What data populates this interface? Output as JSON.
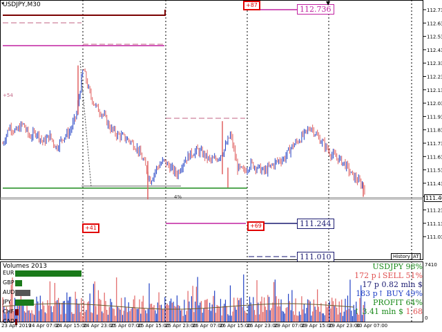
{
  "main_chart": {
    "symbol_label": "USDJPY,M30",
    "price_axis": [
      "112.730",
      "112.630",
      "112.530",
      "112.430",
      "112.330",
      "112.230",
      "112.130",
      "112.030",
      "111.930",
      "111.830",
      "111.730",
      "111.630",
      "111.530",
      "111.430",
      "111.330",
      "111.230",
      "111.130",
      "111.030"
    ],
    "current_price": "111.408",
    "level_labels": {
      "top": "112.736",
      "mid": "111.244",
      "low": "111.010"
    },
    "red_boxes": {
      "top": "+87",
      "left": "+41",
      "mid": "+69"
    },
    "side_mark": "+54",
    "percent_mark": "4%",
    "history_button": "History_M",
    "at_button": "AT",
    "colors": {
      "bull": "#1f3fc4",
      "bear": "#e06060",
      "level_magenta": "#c020a0",
      "level_green": "#1a8a1a",
      "level_dark": "#7a0000",
      "box_red": "#e00000"
    }
  },
  "volume_panel": {
    "title": "Volumes 2013",
    "max_value": "7410",
    "min_value": "0",
    "currencies": [
      {
        "code": "EUR",
        "strength": 1.0,
        "color": "#1a7a1a"
      },
      {
        "code": "GBP",
        "strength": 0.3,
        "color": "#1a7a1a"
      },
      {
        "code": "AUD",
        "strength": 0.7,
        "color": "#555555"
      },
      {
        "code": "JPY",
        "strength": 0.85,
        "color": "#1a7a1a"
      },
      {
        "code": "CHF",
        "strength": 0.15,
        "color": "#7a0000"
      },
      {
        "code": "CAD",
        "strength": 0.1,
        "color": "#7a0000"
      }
    ],
    "stats": {
      "line1": "USDJPY 98%",
      "line2": "172 p↓SELL 51%",
      "line3": "17 p   0.82 mln $",
      "line4": "183 p↑ BUY 49%",
      "line5": "PROFIT 64%",
      "line6": "↑  3.41 mln $",
      "line6_tail": "1.68"
    }
  },
  "time_axis": [
    "23 Apr 2019",
    "24 Apr 07:00",
    "24 Apr 15:00",
    "24 Apr 23:00",
    "25 Apr 07:00",
    "25 Apr 15:00",
    "25 Apr 23:00",
    "26 Apr 07:00",
    "26 Apr 15:00",
    "26 Apr 23:00",
    "29 Apr 07:00",
    "29 Apr 15:00",
    "29 Apr 23:00",
    "30 Apr 07:00"
  ],
  "chart_data": {
    "type": "candlestick",
    "symbol": "USDJPY",
    "timeframe": "M30",
    "y_range": [
      111.03,
      112.74
    ],
    "approx_close_path": [
      111.73,
      111.86,
      111.82,
      111.88,
      111.78,
      111.82,
      111.74,
      111.79,
      111.7,
      111.78,
      111.82,
      111.95,
      112.3,
      112.1,
      112.0,
      111.95,
      111.85,
      111.8,
      111.78,
      111.75,
      111.7,
      111.6,
      111.45,
      111.55,
      111.6,
      111.55,
      111.5,
      111.6,
      111.65,
      111.68,
      111.65,
      111.6,
      111.62,
      111.68,
      111.8,
      111.55,
      111.52,
      111.58,
      111.55,
      111.52,
      111.56,
      111.6,
      111.62,
      111.7,
      111.75,
      111.8,
      111.86,
      111.78,
      111.72,
      111.65,
      111.62,
      111.58,
      111.5,
      111.45,
      111.4
    ],
    "volume_max": 7410
  }
}
